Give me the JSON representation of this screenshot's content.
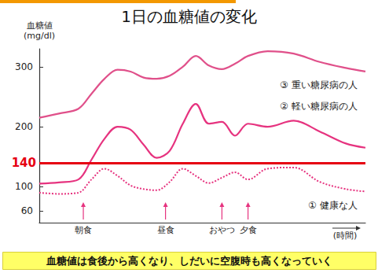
{
  "chart_data": {
    "type": "line",
    "title": "1日の血糖値の変化",
    "y_label": "血糖値 (mg/dl)",
    "x_label": "(時間)",
    "caption": "血糖値は食後から高くなり、しだいに空腹時も高くなっていく",
    "x": [
      0,
      6,
      12,
      16,
      20,
      24,
      28,
      32,
      36,
      40,
      44,
      48,
      52,
      56,
      60,
      64,
      70,
      78,
      86,
      94,
      100
    ],
    "series": [
      {
        "name": "① 健康な人",
        "color": "#e6337f",
        "line_style": "dotted",
        "marker": "none",
        "values": [
          90,
          88,
          90,
          112,
          130,
          118,
          102,
          96,
          94,
          108,
          130,
          118,
          106,
          115,
          124,
          112,
          130,
          132,
          108,
          96,
          92
        ]
      },
      {
        "name": "② 軽い糖尿病の人",
        "color": "#e6337f",
        "line_style": "solid",
        "marker": "none",
        "values": [
          105,
          107,
          112,
          145,
          180,
          200,
          195,
          170,
          148,
          160,
          205,
          238,
          205,
          208,
          185,
          205,
          200,
          210,
          192,
          172,
          165
        ]
      },
      {
        "name": "③ 重い糖尿病の人",
        "color": "#e0508a",
        "line_style": "solid",
        "marker": "none",
        "values": [
          215,
          222,
          230,
          255,
          280,
          295,
          292,
          282,
          280,
          285,
          300,
          318,
          302,
          296,
          305,
          318,
          326,
          322,
          308,
          298,
          292
        ]
      }
    ],
    "reference_line": {
      "value": 140,
      "color": "#e60012"
    },
    "annotations": [
      {
        "text": "朝食",
        "x": 13.5
      },
      {
        "text": "昼食",
        "x": 38.7
      },
      {
        "text": "おやつ",
        "x": 56
      },
      {
        "text": "夕食",
        "x": 64
      }
    ],
    "xlim": [
      0,
      100
    ],
    "ylim": [
      40,
      330
    ],
    "yticks": [
      60,
      100,
      200,
      300
    ],
    "grid": false,
    "tick_labels": "y"
  }
}
